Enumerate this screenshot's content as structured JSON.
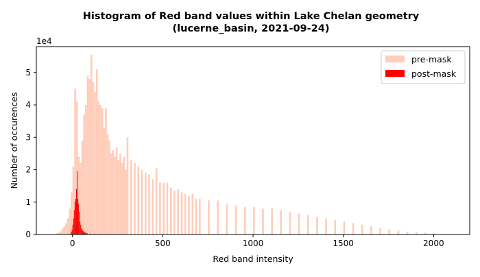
{
  "chart_data": {
    "type": "bar",
    "title_line1": "Histogram of Red band values within Lake Chelan geometry",
    "title_line2": "(lucerne_basin, 2021-09-24)",
    "xlabel": "Red band intensity",
    "ylabel": "Number of occurences",
    "y_scale_label": "1e4",
    "xlim": [
      -200,
      2200
    ],
    "ylim": [
      0,
      58000
    ],
    "x_ticks": [
      0,
      500,
      1000,
      1500,
      2000
    ],
    "x_tick_labels": [
      "0",
      "500",
      "1000",
      "1500",
      "2000"
    ],
    "y_ticks": [
      0,
      10000,
      20000,
      30000,
      40000,
      50000
    ],
    "y_tick_labels": [
      "0",
      "1",
      "2",
      "3",
      "4",
      "5"
    ],
    "legend_position": "top-right",
    "series": [
      {
        "name": "pre-mask",
        "color": "#ffcdb9",
        "bin_width": 10,
        "x": [
          -100,
          -90,
          -80,
          -70,
          -60,
          -50,
          -40,
          -30,
          -20,
          -10,
          0,
          10,
          20,
          30,
          40,
          50,
          60,
          70,
          80,
          90,
          100,
          110,
          120,
          130,
          140,
          150,
          160,
          170,
          180,
          190,
          200,
          210,
          220,
          230,
          240,
          250,
          260,
          270,
          280,
          290,
          300,
          320,
          340,
          360,
          380,
          400,
          420,
          440,
          460,
          480,
          500,
          520,
          540,
          560,
          580,
          600,
          620,
          640,
          660,
          680,
          700,
          750,
          800,
          850,
          900,
          950,
          1000,
          1050,
          1100,
          1150,
          1200,
          1250,
          1300,
          1350,
          1400,
          1450,
          1500,
          1550,
          1600,
          1650,
          1700,
          1750,
          1800,
          1850,
          1900,
          1950,
          2000,
          2050,
          2100,
          2150,
          2180
        ],
        "values": [
          200,
          400,
          600,
          1000,
          1800,
          2500,
          3500,
          5000,
          8000,
          13000,
          21000,
          45000,
          41000,
          24000,
          22000,
          29000,
          37000,
          40000,
          49000,
          48000,
          55500,
          47000,
          44000,
          51000,
          41000,
          40000,
          39000,
          33000,
          39000,
          31000,
          29000,
          25000,
          26000,
          24000,
          27000,
          23000,
          25000,
          22000,
          24000,
          20000,
          30000,
          23000,
          22000,
          21000,
          20000,
          19000,
          18500,
          17000,
          20500,
          16000,
          16000,
          16000,
          14500,
          13500,
          14000,
          13000,
          12500,
          12000,
          12500,
          11000,
          11000,
          10500,
          10500,
          9500,
          9000,
          8500,
          8500,
          8000,
          8000,
          7500,
          7000,
          6500,
          6000,
          5500,
          5000,
          4500,
          4000,
          3500,
          3000,
          2500,
          2000,
          1500,
          1200,
          900,
          700,
          500,
          300,
          200,
          150,
          100,
          50
        ]
      },
      {
        "name": "post-mask",
        "color": "#ff0000",
        "bin_width": 4,
        "x": [
          -12,
          -8,
          -4,
          0,
          4,
          8,
          12,
          16,
          20,
          24,
          28,
          32,
          36,
          40,
          44,
          48,
          52,
          56,
          60,
          64,
          68,
          72,
          76,
          80,
          100,
          120,
          150,
          180,
          210,
          240,
          270,
          290
        ],
        "values": [
          300,
          800,
          1500,
          3000,
          5000,
          7500,
          10000,
          11000,
          14000,
          19500,
          11000,
          9500,
          7000,
          4000,
          3000,
          2000,
          1500,
          1200,
          900,
          700,
          600,
          500,
          400,
          350,
          300,
          250,
          200,
          150,
          120,
          100,
          80,
          50
        ]
      }
    ]
  }
}
